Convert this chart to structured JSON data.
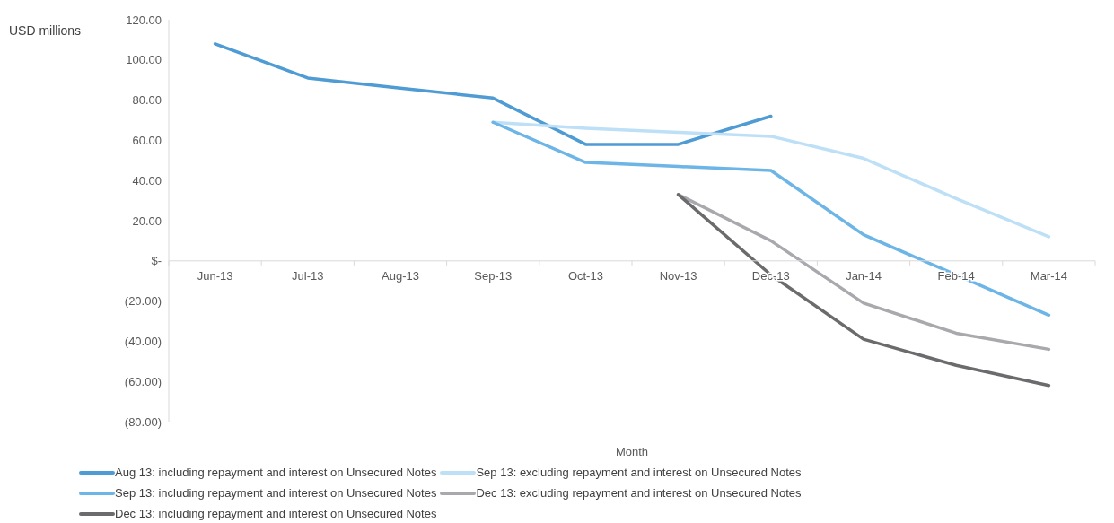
{
  "chart_data": {
    "type": "line",
    "ylabel": "USD millions",
    "xlabel": "Month",
    "categories": [
      "Jun-13",
      "Jul-13",
      "Aug-13",
      "Sep-13",
      "Oct-13",
      "Nov-13",
      "Dec-13",
      "Jan-14",
      "Feb-14",
      "Mar-14"
    ],
    "series": [
      {
        "name": "Aug 13: including repayment and interest on Unsecured Notes",
        "color": "#4f9bd4",
        "values": [
          108,
          91,
          86,
          81,
          58,
          58,
          72,
          null,
          null,
          null
        ]
      },
      {
        "name": "Sep 13: excluding repayment and interest on Unsecured Notes",
        "color": "#bde0f7",
        "values": [
          null,
          null,
          null,
          69,
          66,
          64,
          62,
          51,
          31,
          12
        ]
      },
      {
        "name": "Sep 13: including repayment and interest on Unsecured Notes",
        "color": "#6cb5e6",
        "values": [
          null,
          null,
          null,
          69,
          49,
          47,
          45,
          13,
          -7,
          -27
        ]
      },
      {
        "name": "Dec 13: excluding repayment and interest on Unsecured Notes",
        "color": "#a9a9ad",
        "values": [
          null,
          null,
          null,
          null,
          null,
          33,
          10,
          -21,
          -36,
          -44
        ]
      },
      {
        "name": "Dec 13: including repayment and interest on Unsecured Notes",
        "color": "#6b6b6d",
        "values": [
          null,
          null,
          null,
          null,
          null,
          33,
          -7,
          -39,
          -52,
          -62
        ]
      }
    ],
    "ylim": [
      -80,
      120
    ],
    "yticks": [
      {
        "value": -80,
        "label": "(80.00)"
      },
      {
        "value": -60,
        "label": "(60.00)"
      },
      {
        "value": -40,
        "label": "(40.00)"
      },
      {
        "value": -20,
        "label": "(20.00)"
      },
      {
        "value": 0,
        "label": "$-"
      },
      {
        "value": 20,
        "label": "20.00"
      },
      {
        "value": 40,
        "label": "40.00"
      },
      {
        "value": 60,
        "label": "60.00"
      },
      {
        "value": 80,
        "label": "80.00"
      },
      {
        "value": 100,
        "label": "100.00"
      },
      {
        "value": 120,
        "label": "120.00"
      }
    ],
    "grid": false,
    "legend": "bottom",
    "marker": "none",
    "line_style": "solid"
  }
}
